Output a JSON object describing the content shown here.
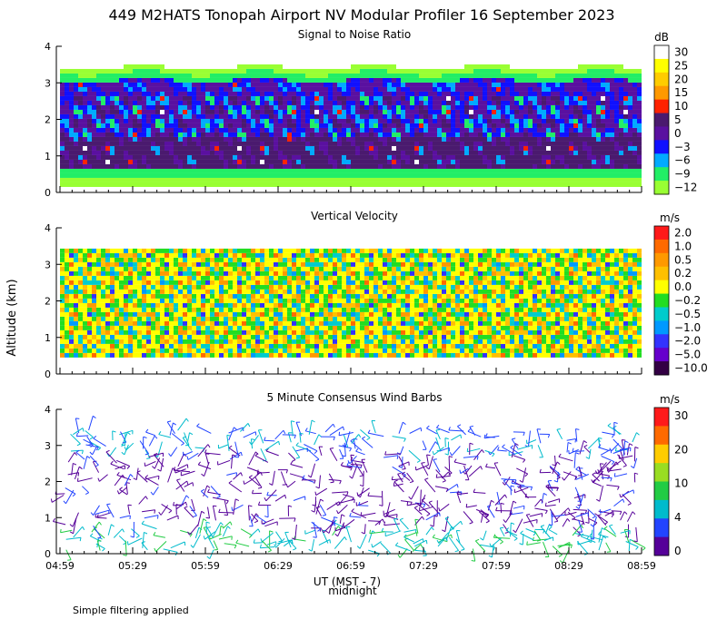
{
  "title": "449 M2HATS Tonopah Airport NV Modular Profiler 16 September 2023",
  "ylabel": "Altitude (km)",
  "footnote": "Simple filtering applied",
  "xaxis": {
    "label": "UT (MST - 7)",
    "sublabel": "midnight",
    "ticks": [
      "04:59",
      "05:29",
      "05:59",
      "06:29",
      "06:59",
      "07:29",
      "07:59",
      "08:29",
      "08:59"
    ]
  },
  "yticks": [
    "0",
    "1",
    "2",
    "3",
    "4"
  ],
  "chart_data": [
    {
      "type": "heatmap",
      "title": "Signal to Noise Ratio",
      "unit": "dB",
      "ylim": [
        0,
        4
      ],
      "colorbar": {
        "labels": [
          "30",
          "25",
          "20",
          "15",
          "10",
          "5",
          "0",
          "−3",
          "−6",
          "−9",
          "−12"
        ],
        "colors": [
          "#ffffff",
          "#ffff00",
          "#ffcc00",
          "#ff9900",
          "#ff2200",
          "#4a1a6e",
          "#5a10a0",
          "#1010ff",
          "#00aaff",
          "#22ee66",
          "#99ff33"
        ]
      }
    },
    {
      "type": "heatmap",
      "title": "Vertical Velocity",
      "unit": "m/s",
      "ylim": [
        0,
        4
      ],
      "colorbar": {
        "labels": [
          "2.0",
          "1.0",
          "0.5",
          "0.2",
          "0.0",
          "−0.2",
          "−0.5",
          "−1.0",
          "−2.0",
          "−5.0",
          "−10.0"
        ],
        "colors": [
          "#ff1a1a",
          "#ff6a00",
          "#ff9900",
          "#ffc000",
          "#ffff00",
          "#22dd22",
          "#00cccc",
          "#0099ff",
          "#3333ff",
          "#6600cc",
          "#330044"
        ]
      }
    },
    {
      "type": "scatter",
      "title": "5 Minute Consensus Wind Barbs",
      "unit": "m/s",
      "ylim": [
        0,
        4
      ],
      "colorbar": {
        "labels": [
          "30",
          "20",
          "10",
          "4",
          "0"
        ],
        "colors": [
          "#ff1a1a",
          "#ff6a00",
          "#ffcc00",
          "#99dd22",
          "#22cc44",
          "#00bbcc",
          "#2244ff",
          "#550099"
        ]
      }
    }
  ]
}
